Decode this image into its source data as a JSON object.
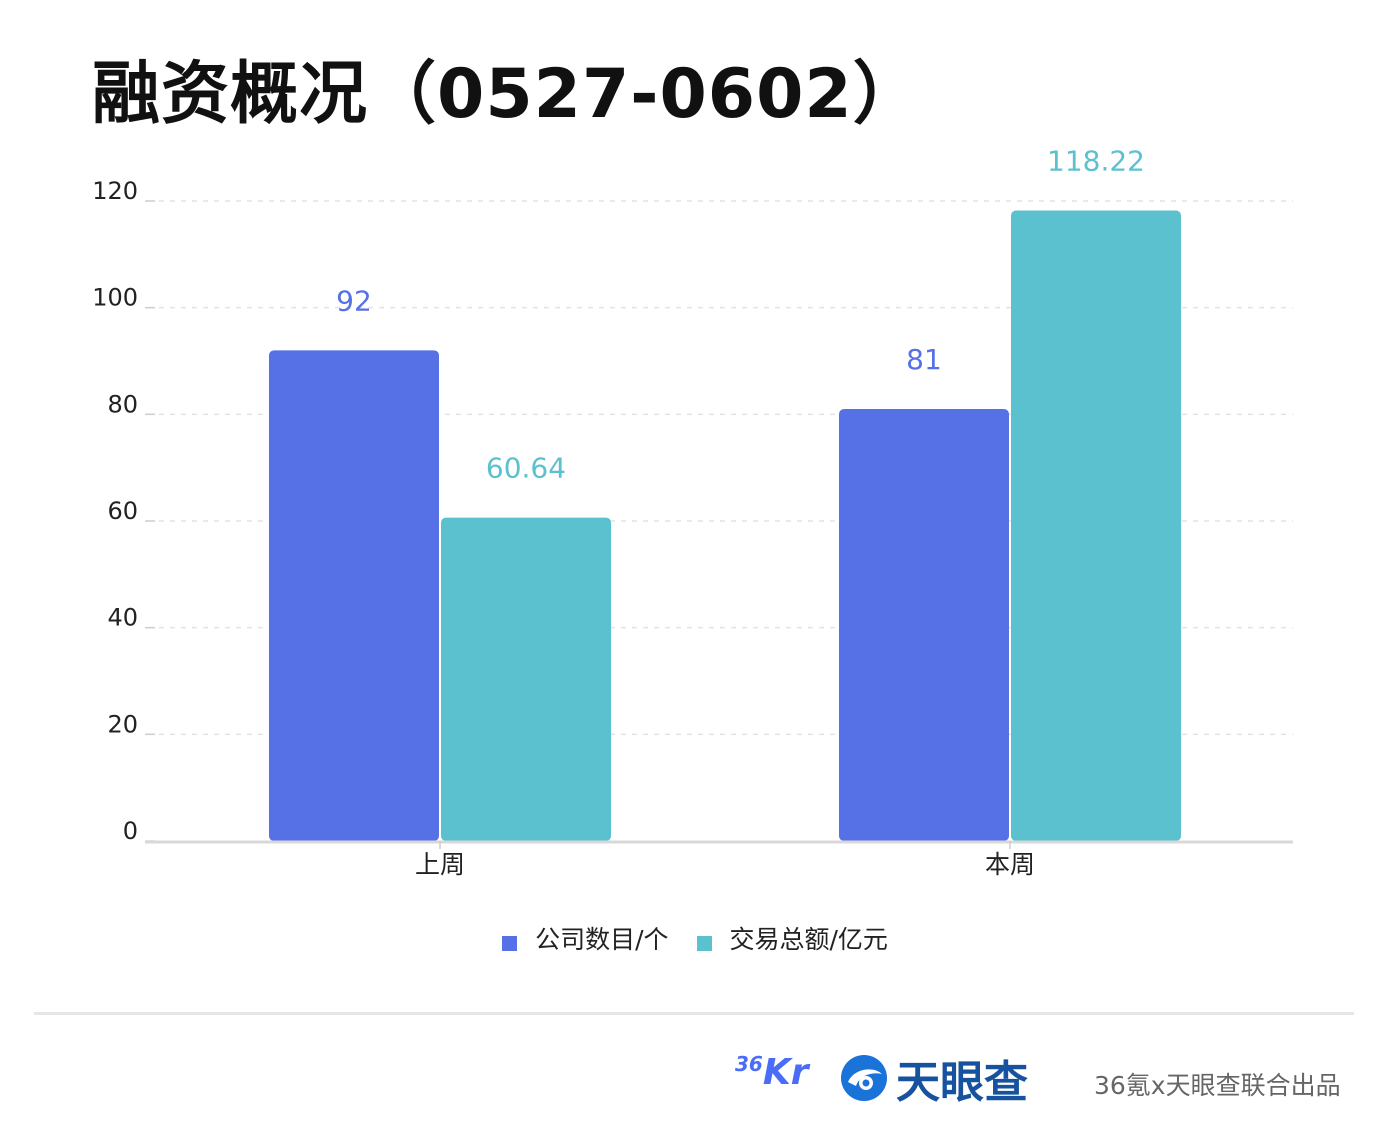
{
  "title": "融资概况（0527-0602）",
  "chart_data": {
    "type": "bar",
    "categories": [
      "上周",
      "本周"
    ],
    "series": [
      {
        "name": "公司数目/个",
        "values": [
          92,
          81
        ],
        "labels": [
          "92",
          "81"
        ],
        "color": "#5670e6"
      },
      {
        "name": "交易总额/亿元",
        "values": [
          60.64,
          118.22
        ],
        "labels": [
          "60.64",
          "118.22"
        ],
        "color": "#5bc1cf"
      }
    ],
    "ylim": [
      0,
      120
    ],
    "yticks": [
      0,
      20,
      40,
      60,
      80,
      100,
      120
    ],
    "grid": true,
    "legend_position": "bottom"
  },
  "footer": {
    "logo_36kr_number": "36",
    "logo_36kr_letters": "Kr",
    "logo_tyc_text": "天眼查",
    "credit": "36氪x天眼查联合出品"
  }
}
